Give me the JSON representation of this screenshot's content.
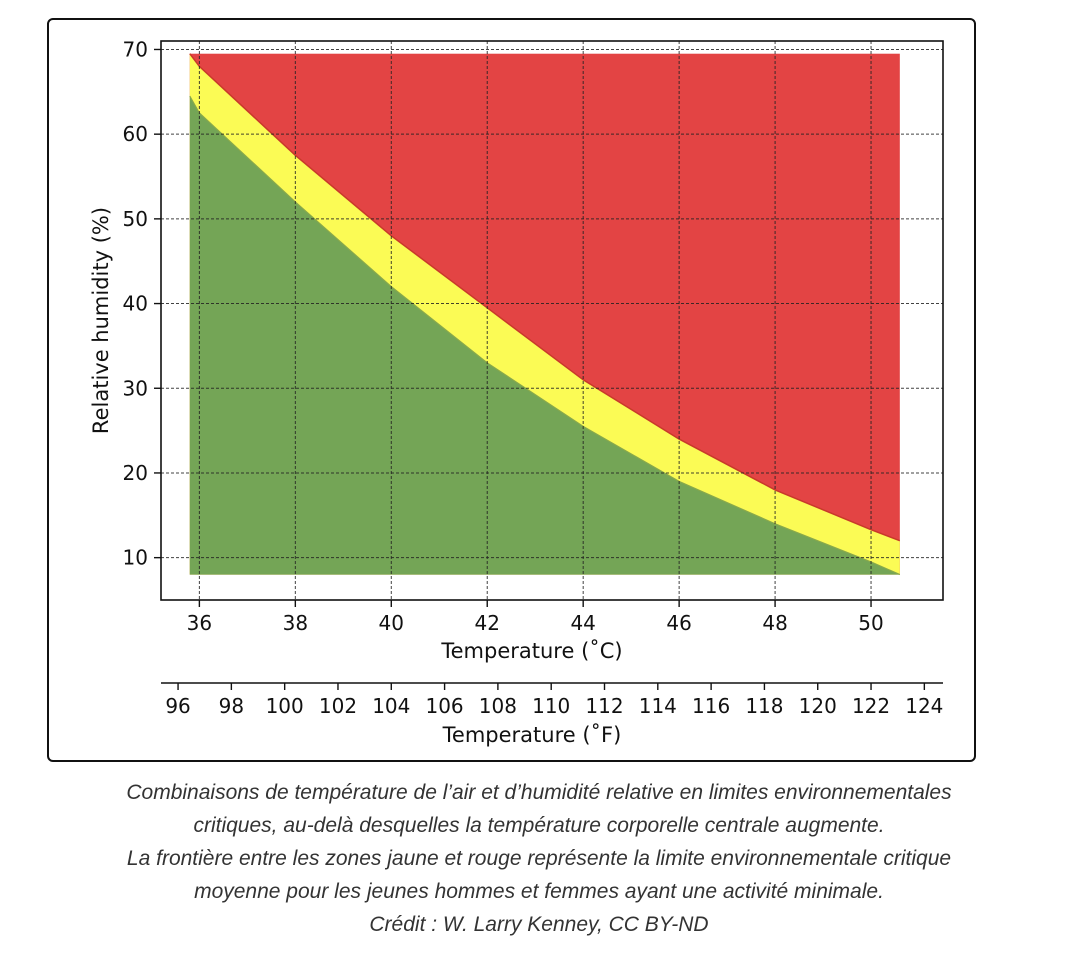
{
  "chart_data": {
    "type": "area",
    "xlabel": "Temperature (˚C)",
    "ylabel": "Relative humidity (%)",
    "x2label": "Temperature (˚F)",
    "xlim": [
      35.2,
      51.5
    ],
    "ylim": [
      5,
      71
    ],
    "x_ticks": [
      36,
      38,
      40,
      42,
      44,
      46,
      48,
      50
    ],
    "y_ticks": [
      10,
      20,
      30,
      40,
      50,
      60,
      70
    ],
    "x2lim": [
      95.36,
      124.7
    ],
    "x2_ticks": [
      96,
      98,
      100,
      102,
      104,
      106,
      108,
      110,
      112,
      114,
      116,
      118,
      120,
      122,
      124
    ],
    "grid": true,
    "colors": {
      "green": "#74a556",
      "yellow": "#fbfb55",
      "red": "#e34444"
    },
    "region_xrange": [
      35.8,
      50.6
    ],
    "region_yrange": [
      8,
      69.5
    ],
    "series": [
      {
        "x": [
          35.8,
          36,
          38,
          40,
          42,
          44,
          46,
          48,
          50,
          50.6
        ],
        "values": [
          64.5,
          62.5,
          52,
          42,
          33,
          25.5,
          19,
          14,
          9.5,
          8
        ]
      },
      {
        "x": [
          35.8,
          36,
          38,
          40,
          42,
          44,
          46,
          48,
          50,
          50.6
        ],
        "values": [
          69.5,
          68,
          57.5,
          48,
          39.5,
          31,
          24,
          18,
          13.3,
          12
        ]
      }
    ]
  },
  "caption": {
    "line1": "Combinaisons de température de l’air et d’humidité relative en limites environnementales",
    "line2": "critiques, au-delà desquelles la température corporelle centrale augmente.",
    "line3": "La frontière entre les zones jaune et rouge représente la limite environnementale critique",
    "line4": "moyenne pour les jeunes hommes et femmes ayant une activité minimale.",
    "line5": "Crédit : W. Larry Kenney, CC BY-ND"
  }
}
